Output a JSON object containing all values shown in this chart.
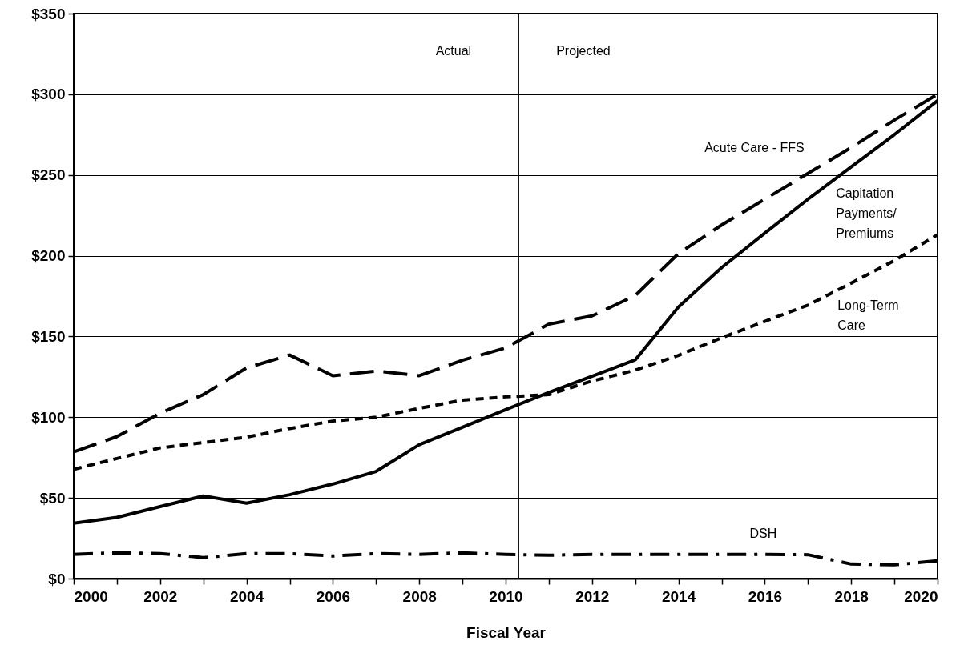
{
  "chart_data": {
    "type": "line",
    "xlabel": "Fiscal Year",
    "x": [
      2000,
      2001,
      2002,
      2003,
      2004,
      2005,
      2006,
      2007,
      2008,
      2009,
      2010,
      2011,
      2012,
      2013,
      2014,
      2015,
      2016,
      2017,
      2018,
      2019,
      2020
    ],
    "series": [
      {
        "name": "Acute Care - FFS",
        "color": "#000000",
        "line_style": "longdash",
        "values": [
          78.5,
          88,
          102.5,
          114,
          130.5,
          138.5,
          125.7,
          128.6,
          125.7,
          135.3,
          142.9,
          157.6,
          162.7,
          175.3,
          201.3,
          219,
          235,
          251,
          267,
          284,
          300
        ]
      },
      {
        "name": "Capitation Payments/ Premiums",
        "color": "#000000",
        "line_style": "solid",
        "values": [
          34.3,
          37.9,
          44.6,
          51.2,
          46.7,
          52,
          58.6,
          66.4,
          83,
          93.8,
          104.7,
          115.3,
          125.4,
          135.5,
          168.2,
          192.6,
          214,
          235,
          255,
          275,
          296
        ]
      },
      {
        "name": "Long-Term Care",
        "color": "#000000",
        "line_style": "dashed",
        "values": [
          67.7,
          74.4,
          81,
          84.3,
          87.6,
          93,
          97.6,
          100,
          105.5,
          110.6,
          112.6,
          114,
          122.4,
          129.1,
          138.3,
          149.2,
          159.3,
          169.4,
          183,
          197,
          213
        ]
      },
      {
        "name": "DSH",
        "color": "#000000",
        "line_style": "dashdot",
        "values": [
          15,
          16,
          15.5,
          13,
          15.5,
          15.5,
          14,
          15.5,
          15,
          16,
          15,
          14.5,
          15,
          15,
          15,
          15,
          15,
          14.8,
          9,
          8.5,
          11
        ]
      }
    ],
    "xlim": [
      2000,
      2020
    ],
    "xticks": [
      2000,
      {
        "value": 2001,
        "label": null
      },
      2002,
      {
        "value": 2003,
        "label": null
      },
      2004,
      {
        "value": 2005,
        "label": null
      },
      2006,
      {
        "value": 2007,
        "label": null
      },
      2008,
      {
        "value": 2009,
        "label": null
      },
      2010,
      {
        "value": 2011,
        "label": null
      },
      2012,
      {
        "value": 2013,
        "label": null
      },
      2014,
      {
        "value": 2015,
        "label": null
      },
      2016,
      {
        "value": 2017,
        "label": null
      },
      2018,
      {
        "value": 2019,
        "label": null
      },
      2020
    ],
    "ylim": [
      0,
      350
    ],
    "yticks": [
      {
        "value": 0,
        "label": "$0"
      },
      {
        "value": 50,
        "label": "$50"
      },
      {
        "value": 100,
        "label": "$100"
      },
      {
        "value": 150,
        "label": "$150"
      },
      {
        "value": 200,
        "label": "$200"
      },
      {
        "value": 250,
        "label": "$250"
      },
      {
        "value": 300,
        "label": "$300"
      },
      {
        "value": 350,
        "label": "$350"
      }
    ],
    "grid": "y",
    "marker": "none",
    "ref_lines": [
      {
        "axis": "x",
        "value": 2010.3,
        "color": "#000000"
      }
    ],
    "annotations": [
      "Actual",
      "Projected"
    ]
  }
}
